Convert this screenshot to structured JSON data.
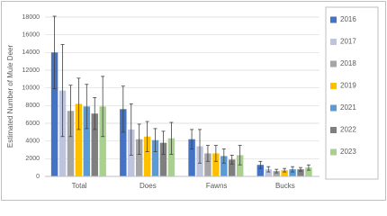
{
  "chart_data": {
    "type": "bar",
    "y_label": "Estimated Number of Mule Deer",
    "categories": [
      "Total",
      "Does",
      "Fawns",
      "Bucks"
    ],
    "series": [
      {
        "name": "2016",
        "color": "#4472c4",
        "values": [
          14000,
          7600,
          4200,
          1300
        ],
        "errors": [
          4100,
          2600,
          1100,
          400
        ]
      },
      {
        "name": "2017",
        "color": "#bfc4dd",
        "values": [
          9700,
          5300,
          3400,
          800
        ],
        "errors": [
          5200,
          2900,
          1900,
          300
        ]
      },
      {
        "name": "2018",
        "color": "#a5a5a5",
        "values": [
          7400,
          4200,
          2600,
          600
        ],
        "errors": [
          2900,
          1700,
          900,
          200
        ]
      },
      {
        "name": "2019",
        "color": "#ffc000",
        "values": [
          8200,
          4500,
          2600,
          700
        ],
        "errors": [
          2900,
          1700,
          900,
          200
        ]
      },
      {
        "name": "2021",
        "color": "#5b9bd5",
        "values": [
          7900,
          4100,
          2300,
          800
        ],
        "errors": [
          2500,
          1300,
          800,
          300
        ]
      },
      {
        "name": "2022",
        "color": "#7f7f7f",
        "values": [
          7100,
          3800,
          1900,
          800
        ],
        "errors": [
          1800,
          1300,
          500,
          200
        ]
      },
      {
        "name": "2023",
        "color": "#a9d18e",
        "values": [
          7900,
          4300,
          2400,
          1000
        ],
        "errors": [
          3400,
          1800,
          1100,
          300
        ]
      }
    ],
    "ylim": [
      0,
      18000
    ],
    "yticks": [
      0,
      2000,
      4000,
      6000,
      8000,
      10000,
      12000,
      14000,
      16000,
      18000
    ],
    "grid": true
  }
}
